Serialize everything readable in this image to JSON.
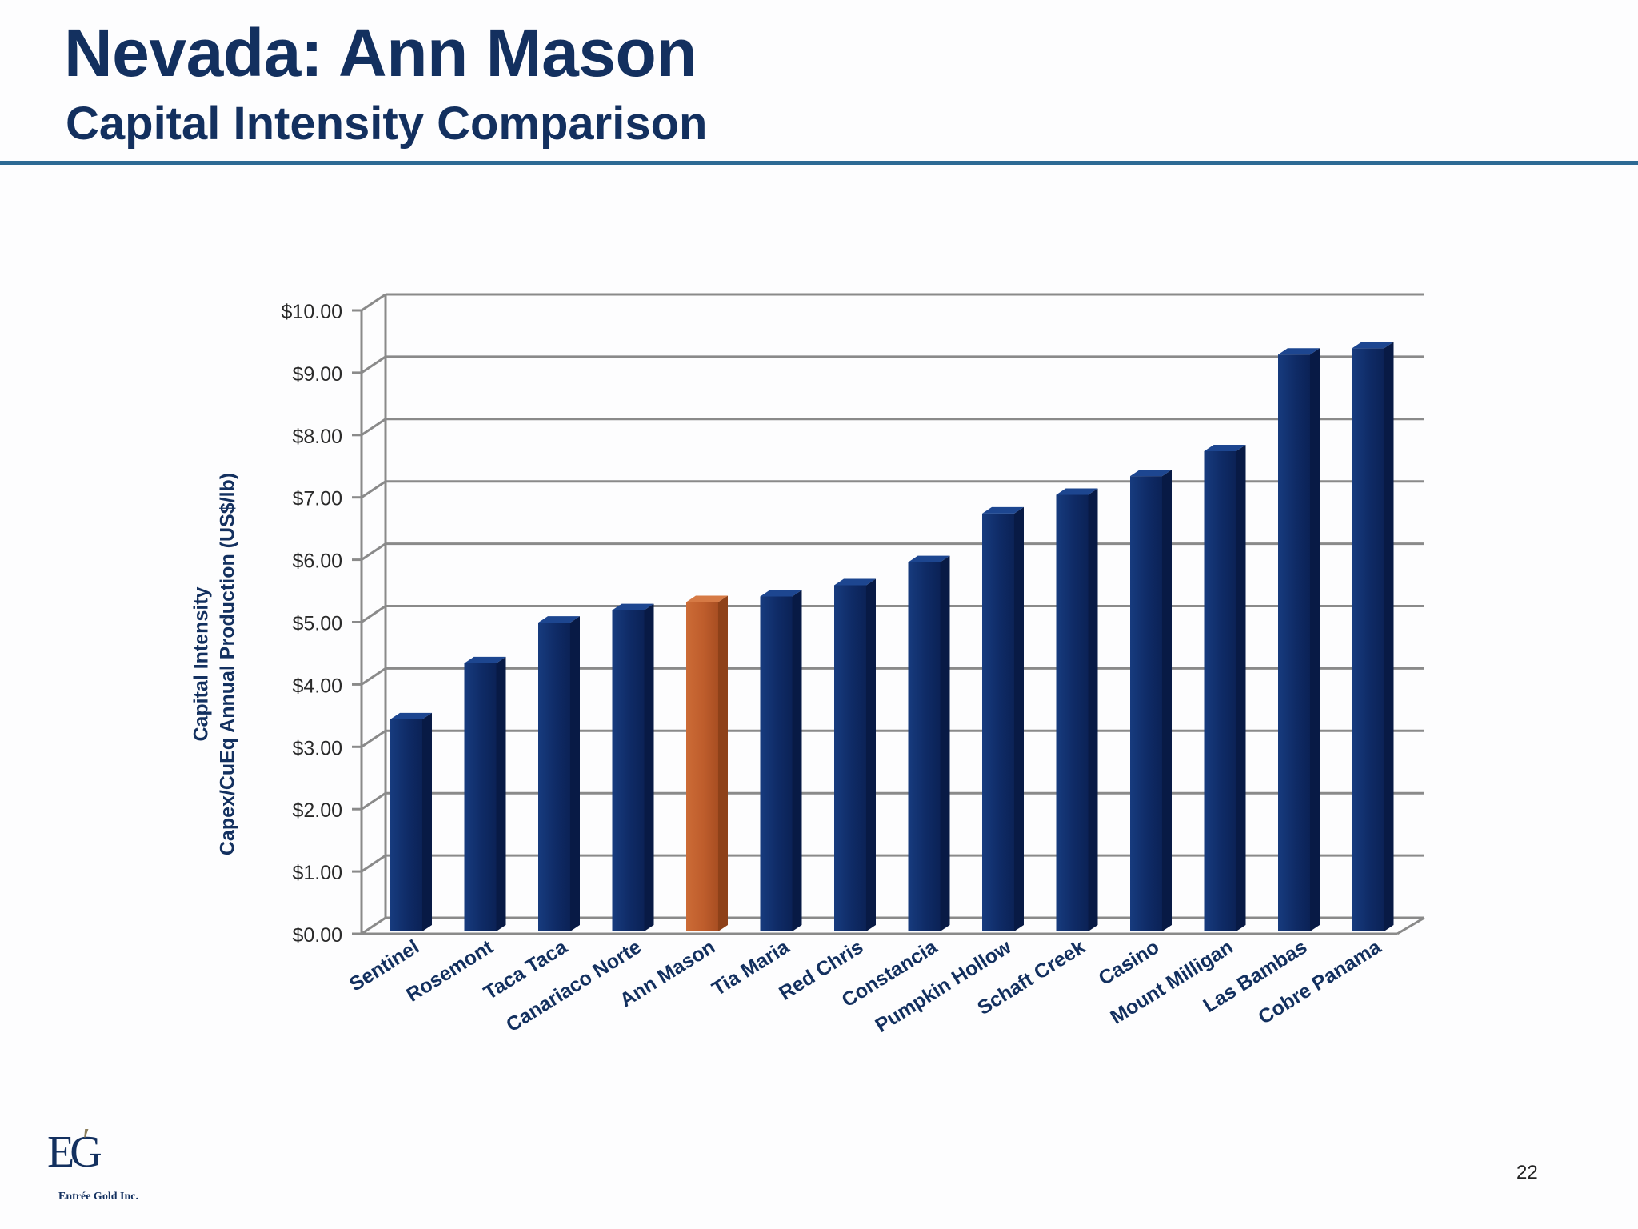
{
  "slide": {
    "title": "Nevada: Ann Mason",
    "subtitle": "Capital Intensity Comparison",
    "page_number": "22"
  },
  "logo": {
    "mark": "EG",
    "company": "Entrée Gold Inc."
  },
  "chart_data": {
    "type": "bar",
    "title": "",
    "xlabel": "",
    "ylabel_lines": [
      "Capital Intensity",
      "Capex/CuEq Annual Production (US$/lb)"
    ],
    "categories": [
      "Sentinel",
      "Rosemont",
      "Taca Taca",
      "Canariaco Norte",
      "Ann Mason",
      "Tia Maria",
      "Red Chris",
      "Constancia",
      "Pumpkin Hollow",
      "Schaft Creek",
      "Casino",
      "Mount Milligan",
      "Las Bambas",
      "Cobre Panama"
    ],
    "values": [
      3.3,
      4.2,
      4.85,
      5.05,
      5.18,
      5.27,
      5.45,
      5.82,
      6.6,
      6.9,
      7.2,
      7.6,
      9.15,
      9.25
    ],
    "highlight_category": "Ann Mason",
    "ylim": [
      0,
      10
    ],
    "yticks": [
      0,
      1,
      2,
      3,
      4,
      5,
      6,
      7,
      8,
      9,
      10
    ],
    "ytick_labels": [
      "$0.00",
      "$1.00",
      "$2.00",
      "$3.00",
      "$4.00",
      "$5.00",
      "$6.00",
      "$7.00",
      "$8.00",
      "$9.00",
      "$10.00"
    ],
    "grid": true,
    "legend": "none",
    "colors": {
      "bar": "#0f2b66",
      "highlight": "#c0612f",
      "grid": "#8a8a8a",
      "text": "#13305f"
    }
  }
}
